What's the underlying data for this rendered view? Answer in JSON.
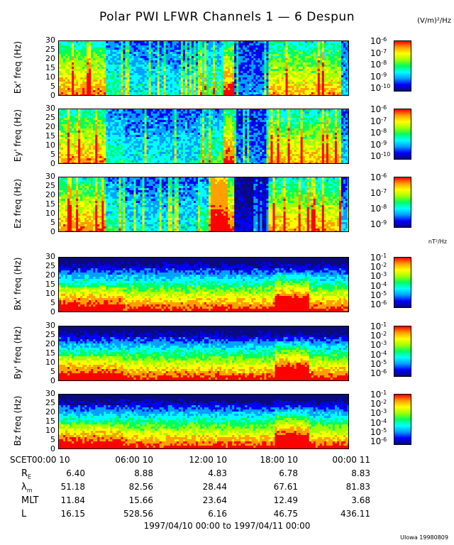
{
  "title": "Polar PWI LFWR Channels 1 — 6 Despun",
  "units": {
    "e_field": "(V/m)²/Hz",
    "b_field": "nT²/Hz"
  },
  "chart_data": {
    "type": "heatmap",
    "title": "Polar PWI LFWR Channels 1 — 6 Despun",
    "x_range": [
      "1997/04/10 00:00",
      "1997/04/11 00:00"
    ],
    "y_range": [
      0,
      30
    ],
    "y_ticks": [
      0,
      5,
      10,
      15,
      20,
      25,
      30
    ],
    "panels": [
      {
        "ylabel": "Ex' freq (Hz)",
        "colorbar_unit": "(V/m)²/Hz",
        "colorbar_labels": [
          "10",
          "10",
          "10",
          "10",
          "10"
        ],
        "colorbar_exponents": [
          "-6",
          "-7",
          "-8",
          "-9",
          "-10"
        ]
      },
      {
        "ylabel": "Ey' freq (Hz)",
        "colorbar_unit": "(V/m)²/Hz",
        "colorbar_labels": [
          "10",
          "10",
          "10",
          "10",
          "10"
        ],
        "colorbar_exponents": [
          "-6",
          "-7",
          "-8",
          "-9",
          "-10"
        ]
      },
      {
        "ylabel": "Ez freq (Hz)",
        "colorbar_unit": "(V/m)²/Hz",
        "colorbar_labels": [
          "10",
          "10",
          "10",
          "10"
        ],
        "colorbar_exponents": [
          "-6",
          "-7",
          "-8",
          "-9"
        ]
      },
      {
        "ylabel": "Bx' freq (Hz)",
        "colorbar_unit": "nT²/Hz",
        "colorbar_labels": [
          "10",
          "10",
          "10",
          "10",
          "10",
          "10"
        ],
        "colorbar_exponents": [
          "-1",
          "-2",
          "-3",
          "-4",
          "-5",
          "-6"
        ]
      },
      {
        "ylabel": "By' freq (Hz)",
        "colorbar_unit": "nT²/Hz",
        "colorbar_labels": [
          "10",
          "10",
          "10",
          "10",
          "10",
          "10"
        ],
        "colorbar_exponents": [
          "-1",
          "-2",
          "-3",
          "-4",
          "-5",
          "-6"
        ]
      },
      {
        "ylabel": "Bz freq (Hz)",
        "colorbar_unit": "nT²/Hz",
        "colorbar_labels": [
          "10",
          "10",
          "10",
          "10",
          "10",
          "10"
        ],
        "colorbar_exponents": [
          "-1",
          "-2",
          "-3",
          "-4",
          "-5",
          "-6"
        ]
      }
    ],
    "colormap": [
      "#0a0a7a",
      "#0000ff",
      "#00a0ff",
      "#00ffff",
      "#00ff60",
      "#a0ff00",
      "#ffff00",
      "#ffa000",
      "#ff0000"
    ]
  },
  "ephemeris": {
    "times": [
      "SCET00:00 10",
      "06:00 10",
      "12:00 10",
      "18:00 10",
      "00:00 11"
    ],
    "rows": [
      {
        "label": "R",
        "sub": "E",
        "values": [
          "6.40",
          "8.88",
          "4.83",
          "6.78",
          "8.83"
        ]
      },
      {
        "label": "λ",
        "sub": "m",
        "values": [
          "51.18",
          "82.56",
          "28.44",
          "67.61",
          "81.83"
        ]
      },
      {
        "label": "MLT",
        "sub": "",
        "values": [
          "11.84",
          "15.66",
          "23.64",
          "12.49",
          "3.68"
        ]
      },
      {
        "label": "L",
        "sub": "",
        "values": [
          "16.15",
          "528.56",
          "6.16",
          "46.75",
          "436.11"
        ]
      }
    ]
  },
  "footer": "1997/04/10 00:00 to 1997/04/11 00:00",
  "credit": "UIowa 19980809"
}
